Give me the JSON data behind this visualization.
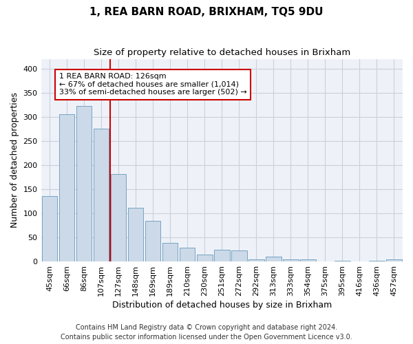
{
  "title": "1, REA BARN ROAD, BRIXHAM, TQ5 9DU",
  "subtitle": "Size of property relative to detached houses in Brixham",
  "xlabel": "Distribution of detached houses by size in Brixham",
  "ylabel": "Number of detached properties",
  "categories": [
    "45sqm",
    "66sqm",
    "86sqm",
    "107sqm",
    "127sqm",
    "148sqm",
    "169sqm",
    "189sqm",
    "210sqm",
    "230sqm",
    "251sqm",
    "272sqm",
    "292sqm",
    "313sqm",
    "333sqm",
    "354sqm",
    "375sqm",
    "395sqm",
    "416sqm",
    "436sqm",
    "457sqm"
  ],
  "values": [
    135,
    305,
    322,
    275,
    181,
    112,
    84,
    38,
    28,
    15,
    25,
    23,
    5,
    10,
    4,
    5,
    0,
    1,
    0,
    2,
    4
  ],
  "bar_color": "#ccd9e8",
  "bar_edge_color": "#6699bb",
  "marker_index": 4,
  "annotation_line1": "1 REA BARN ROAD: 126sqm",
  "annotation_line2": "← 67% of detached houses are smaller (1,014)",
  "annotation_line3": "33% of semi-detached houses are larger (502) →",
  "marker_color": "#cc0000",
  "ylim": [
    0,
    420
  ],
  "yticks": [
    0,
    50,
    100,
    150,
    200,
    250,
    300,
    350,
    400
  ],
  "footer_line1": "Contains HM Land Registry data © Crown copyright and database right 2024.",
  "footer_line2": "Contains public sector information licensed under the Open Government Licence v3.0.",
  "bg_color": "#ffffff",
  "plot_bg_color": "#eef2f8",
  "grid_color": "#c8d0dc",
  "title_fontsize": 11,
  "subtitle_fontsize": 9.5,
  "axis_label_fontsize": 9,
  "tick_fontsize": 8,
  "footer_fontsize": 7,
  "annotation_fontsize": 8
}
